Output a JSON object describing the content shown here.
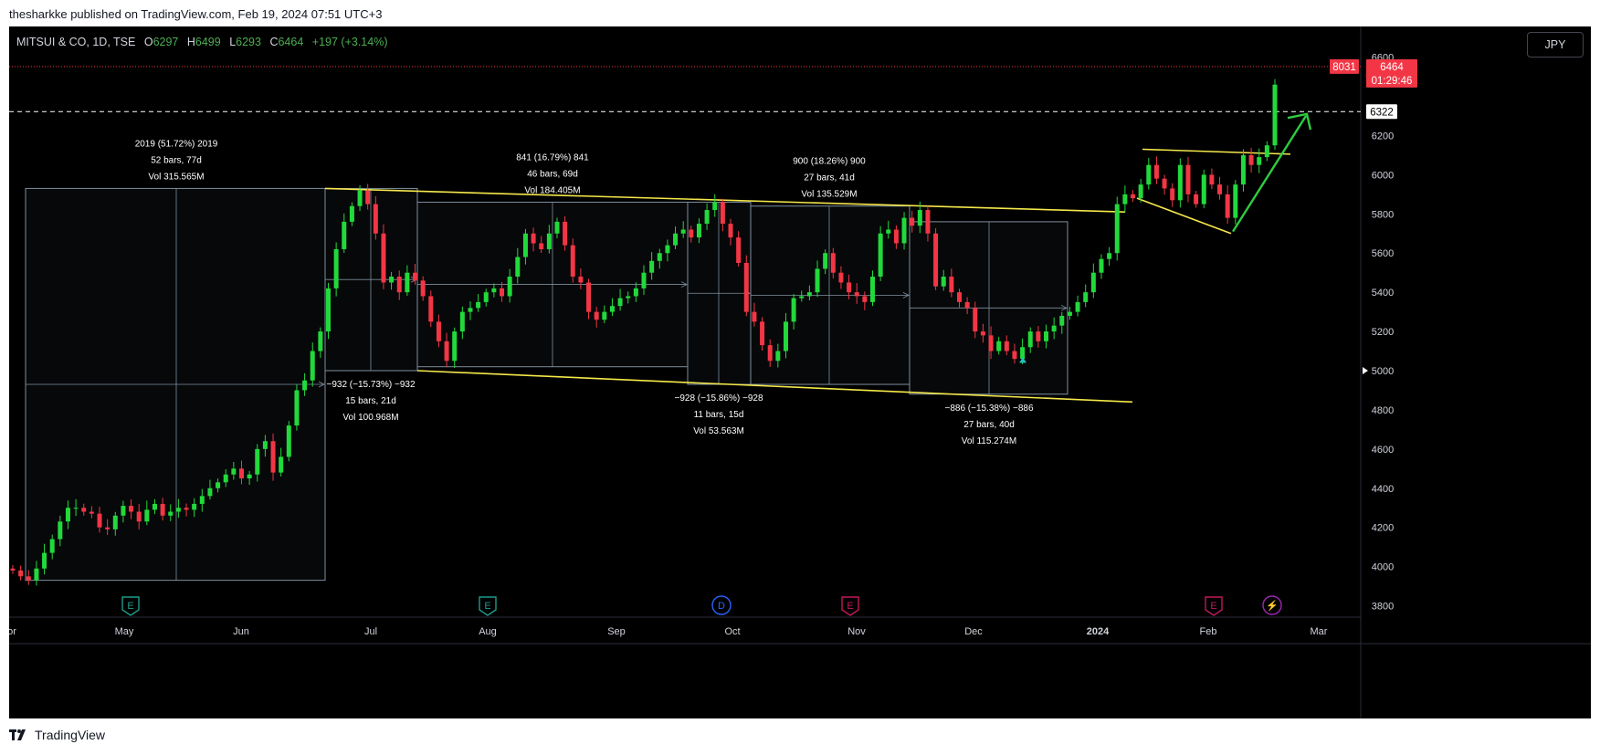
{
  "publisher_line": "thesharkke published on TradingView.com, Feb 19, 2024 07:51 UTC+3",
  "legend": {
    "symbol": "MITSUI & CO, 1D, TSE",
    "o_label": "O",
    "o": "6297",
    "h_label": "H",
    "h": "6499",
    "l_label": "L",
    "l": "6293",
    "c_label": "C",
    "c": "6464",
    "change": "+197 (+3.14%)"
  },
  "currency": "JPY",
  "footer": {
    "brand": "TradingView",
    "logo": "tv-logo-icon"
  },
  "colors": {
    "background": "#000000",
    "up": "#22d93c",
    "down": "#f23645",
    "trendline": "#f5e84a",
    "arrow": "#2ecc40",
    "axis_text": "#d1d4dc",
    "range_box": "#7e8fa0"
  },
  "chart_data": {
    "type": "candlestick",
    "title": "MITSUI & CO, 1D, TSE",
    "y_range": [
      3800,
      6600
    ],
    "y_ticks": [
      "6600",
      "6200",
      "6000",
      "5800",
      "5600",
      "5400",
      "5200",
      "5000",
      "4800",
      "4600",
      "4400",
      "4200",
      "4000",
      "3800"
    ],
    "x_ticks": [
      "or",
      "May",
      "Jun",
      "Jul",
      "Aug",
      "Sep",
      "Oct",
      "Nov",
      "Dec",
      "2024",
      "Feb",
      "Mar"
    ],
    "price_labels": [
      {
        "text": "8031",
        "style": "red"
      },
      {
        "text": "6464",
        "style": "red"
      },
      {
        "text": "01:29:46",
        "style": "red"
      },
      {
        "text": "6322",
        "style": "white"
      },
      {
        "text": "5000",
        "style": "marker"
      }
    ],
    "measurements": [
      {
        "lines": [
          "2019 (51.72%) 2019",
          "52 bars, 77d",
          "Vol 315.565M"
        ],
        "from": 3930,
        "to": 5930
      },
      {
        "lines": [
          "841 (16.79%) 841",
          "46 bars, 69d",
          "Vol 184.405M"
        ],
        "from": 5020,
        "to": 5860
      },
      {
        "lines": [
          "900 (18.26%) 900",
          "27 bars, 41d",
          "Vol 135.529M"
        ],
        "from": 4930,
        "to": 5840
      },
      {
        "lines": [
          "−932 (−15.73%) −932",
          "15 bars, 21d",
          "Vol 100.968M"
        ],
        "from": 5930,
        "to": 5000
      },
      {
        "lines": [
          "−928 (−15.86%) −928",
          "11 bars, 15d",
          "Vol 53.563M"
        ],
        "from": 5860,
        "to": 4930
      },
      {
        "lines": [
          "−886 (−15.38%) −886",
          "27 bars, 40d",
          "Vol 115.274M"
        ],
        "from": 5760,
        "to": 4880
      }
    ],
    "events": [
      {
        "glyph": "E",
        "kind": "earnings"
      },
      {
        "glyph": "E",
        "kind": "earnings"
      },
      {
        "glyph": "D",
        "kind": "dividend"
      },
      {
        "glyph": "E",
        "kind": "earnings"
      },
      {
        "glyph": "E",
        "kind": "earnings"
      },
      {
        "glyph": "⚡",
        "kind": "split"
      }
    ],
    "trendlines": [
      {
        "name": "upper-channel",
        "from": [
          "Jun",
          5930
        ],
        "to": [
          "2024",
          5810
        ]
      },
      {
        "name": "lower-channel",
        "from": [
          "Jul",
          5000
        ],
        "to": [
          "2024",
          4840
        ]
      }
    ],
    "closes": [
      3980,
      3950,
      3930,
      3990,
      4070,
      4140,
      4230,
      4300,
      4300,
      4280,
      4270,
      4200,
      4190,
      4260,
      4310,
      4280,
      4230,
      4290,
      4320,
      4260,
      4280,
      4300,
      4290,
      4320,
      4360,
      4400,
      4430,
      4470,
      4500,
      4450,
      4470,
      4600,
      4640,
      4480,
      4560,
      4720,
      4900,
      4950,
      5100,
      5200,
      5420,
      5620,
      5760,
      5840,
      5920,
      5850,
      5700,
      5450,
      5480,
      5400,
      5500,
      5460,
      5380,
      5250,
      5150,
      5050,
      5200,
      5300,
      5320,
      5350,
      5400,
      5420,
      5380,
      5480,
      5580,
      5700,
      5650,
      5620,
      5700,
      5760,
      5640,
      5480,
      5450,
      5300,
      5260,
      5300,
      5330,
      5370,
      5380,
      5420,
      5500,
      5560,
      5600,
      5640,
      5700,
      5720,
      5680,
      5750,
      5820,
      5860,
      5750,
      5680,
      5550,
      5300,
      5250,
      5130,
      5050,
      5100,
      5250,
      5370,
      5380,
      5400,
      5520,
      5600,
      5500,
      5450,
      5400,
      5380,
      5350,
      5480,
      5700,
      5720,
      5650,
      5780,
      5740,
      5820,
      5700,
      5430,
      5480,
      5400,
      5350,
      5320,
      5200,
      5180,
      5100,
      5150,
      5100,
      5060,
      5120,
      5200,
      5150,
      5200,
      5230,
      5280,
      5300,
      5350,
      5400,
      5500,
      5570,
      5600,
      5850,
      5900,
      5880,
      5950,
      6050,
      5980,
      5930,
      5870,
      6050,
      5900,
      5850,
      6000,
      5950,
      5900,
      5780,
      5950,
      6100,
      6050,
      6090,
      6150,
      6460
    ]
  }
}
